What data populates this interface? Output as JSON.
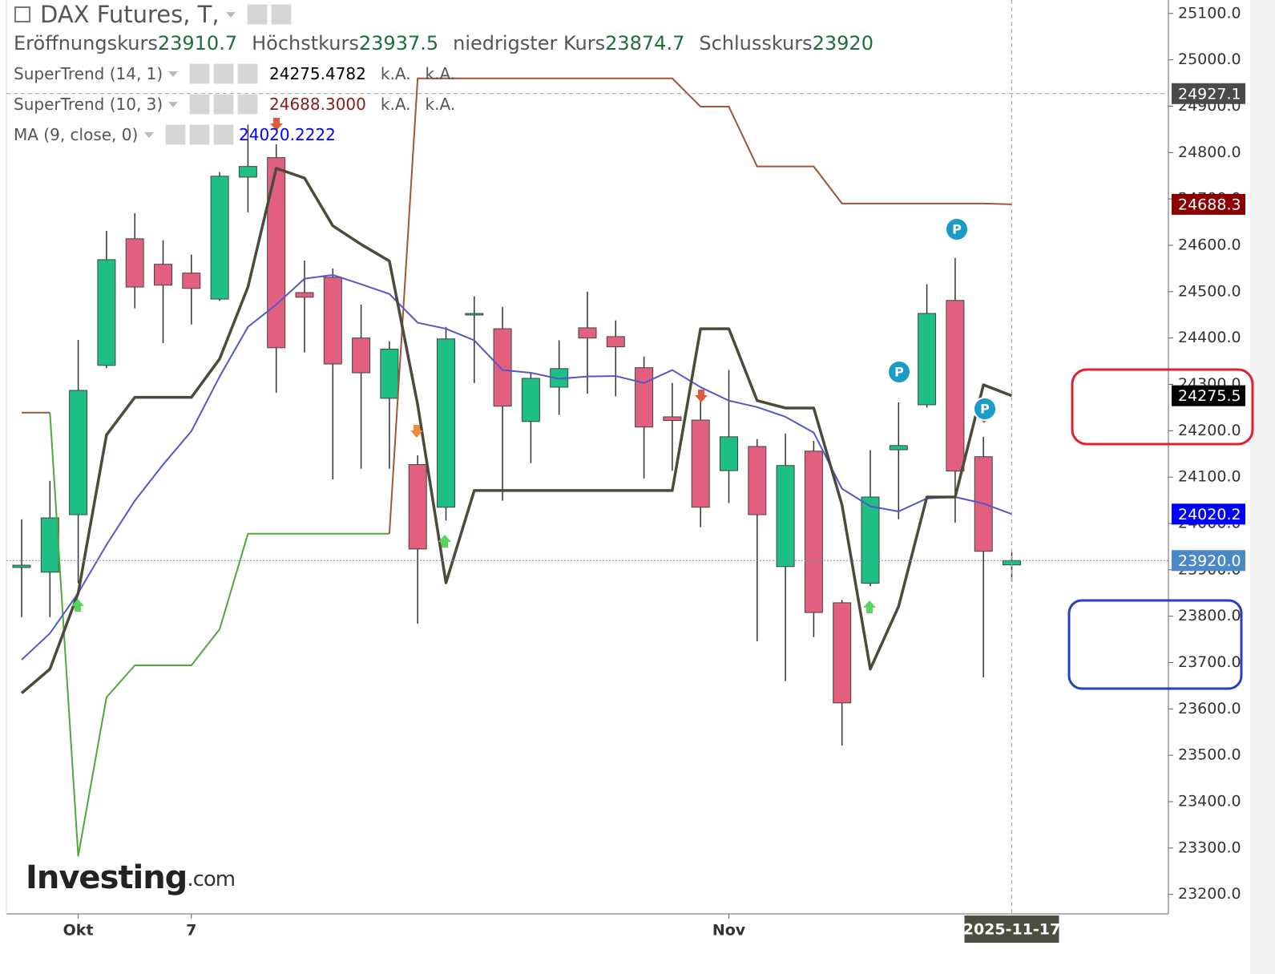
{
  "chart_data": {
    "type": "candlestick",
    "title": "DAX Futures, T,",
    "ohlc_header": [
      {
        "label": "Eröffnungskurs",
        "value": 23910.7
      },
      {
        "label": "Höchstkurs",
        "value": 23937.5
      },
      {
        "label": "niedrigster Kurs",
        "value": 23874.7
      },
      {
        "label": "Schlusskurs",
        "value": 23920.0
      }
    ],
    "categories": [
      null,
      null,
      "Okt",
      null,
      null,
      null,
      "7",
      null,
      null,
      null,
      null,
      null,
      null,
      null,
      null,
      null,
      null,
      null,
      null,
      null,
      null,
      null,
      null,
      null,
      null,
      "Nov",
      null,
      null,
      null,
      null,
      null,
      null,
      null,
      null,
      null,
      "2025-11-17"
    ],
    "open": [
      23905,
      23895,
      24019,
      24341,
      24614,
      24559,
      24540,
      24484,
      24747,
      24789,
      24498,
      24531,
      24400,
      24270,
      24127,
      24035,
      24450,
      24420,
      24220,
      24294,
      24422,
      24403,
      24336,
      24230,
      24223,
      24114,
      24166,
      23907,
      24156,
      23829,
      23871,
      24159,
      24256,
      24481,
      24144,
      23910.7
    ],
    "high": [
      24009,
      24092,
      24396,
      24631,
      24669,
      24611,
      24580,
      24758,
      24860,
      24818,
      24567,
      24550,
      24472,
      24393,
      24147,
      24424,
      24490,
      24467,
      24325,
      24395,
      24500,
      24438,
      24360,
      24303,
      24265,
      24331,
      24182,
      24194,
      24178,
      23835,
      24158,
      24261,
      24516,
      24573,
      24187,
      23937.5
    ],
    "low": [
      23798,
      23798,
      23871,
      24335,
      24464,
      24389,
      24429,
      24480,
      24671,
      24282,
      24369,
      24095,
      24118,
      24118,
      23784,
      24006,
      24303,
      24049,
      24130,
      24234,
      24280,
      24274,
      24097,
      24114,
      23992,
      24044,
      23746,
      23660,
      23755,
      23521,
      23865,
      24009,
      24250,
      24002,
      23668,
      23874.7
    ],
    "close": [
      23910,
      24012,
      24287,
      24569,
      24510,
      24514,
      24507,
      24749,
      24770,
      24379,
      24488,
      24344,
      24325,
      24376,
      23945,
      24398,
      24453,
      24253,
      24313,
      24334,
      24400,
      24381,
      24208,
      24222,
      24035,
      24187,
      24019,
      24125,
      23808,
      23613,
      24057,
      24168,
      24453,
      24113,
      23940,
      23920
    ],
    "up_color": "#1dbf85",
    "down_color": "#e2607d",
    "series": [
      {
        "name": "SuperTrend (14, 1)",
        "color": "#4b4b3c",
        "value_label": "24275.4782",
        "label_color": "#000000",
        "notes": [
          "k.A.",
          "k.A."
        ],
        "values": [
          23634,
          23686,
          23850,
          24191,
          24272,
          24272,
          24272,
          24355,
          24510,
          24766,
          24745,
          24642,
          24602,
          24566,
          24256,
          23872,
          24071,
          24071,
          24071,
          24071,
          24071,
          24071,
          24071,
          24071,
          24420,
          24420,
          24265,
          24249,
          24249,
          24040,
          23686,
          23821,
          24057,
          24057,
          24299,
          24275.4782
        ]
      },
      {
        "name": "SuperTrend (10, 3)",
        "value_label": "24688.3000",
        "label_color": "#8b1a1a",
        "notes": [
          "k.A.",
          "k.A."
        ],
        "up_color": "#4ea83a",
        "down_color": "#a0553a",
        "values_up": [
          null,
          24239,
          23283,
          23625,
          23694,
          23694,
          23694,
          23772,
          23978,
          23978,
          23978,
          23978,
          23978,
          23978,
          null,
          null,
          null,
          null,
          null,
          null,
          null,
          null,
          null,
          null,
          null,
          null,
          null,
          null,
          null,
          null,
          null,
          null,
          null,
          null,
          null,
          null
        ],
        "values_down": [
          24239,
          24239,
          null,
          null,
          null,
          null,
          null,
          null,
          null,
          null,
          null,
          null,
          null,
          23978,
          24960,
          24960,
          24960,
          24960,
          24960,
          24960,
          24960,
          24960,
          24960,
          24960,
          24899,
          24899,
          24770,
          24770,
          24770,
          24690,
          24690,
          24690,
          24690,
          24690,
          24690,
          24688.3
        ]
      },
      {
        "name": "MA (9, close, 0)",
        "color": "#5555cc",
        "value_label": "24020.2222",
        "label_color": "#0000ff",
        "values": [
          23706,
          23763,
          23850,
          23954,
          24049,
          24127,
          24199,
          24317,
          24424,
          24472,
          24528,
          24536,
          24516,
          24495,
          24433,
          24420,
          24395,
          24331,
          24325,
          24312,
          24317,
          24318,
          24303,
          24331,
          24294,
          24265,
          24251,
          24230,
          24196,
          24075,
          24037,
          24026,
          24054,
          24057,
          24043,
          24020.2222
        ]
      }
    ],
    "ylim": [
      23158,
      25129
    ],
    "yticks": [
      {
        "value": 23200,
        "label": "23200.0"
      },
      {
        "value": 23300,
        "label": "23300.0"
      },
      {
        "value": 23400,
        "label": "23400.0"
      },
      {
        "value": 23500,
        "label": "23500.0"
      },
      {
        "value": 23600,
        "label": "23600.0"
      },
      {
        "value": 23700,
        "label": "23700.0"
      },
      {
        "value": 23800,
        "label": "23800.0"
      },
      {
        "value": 23900,
        "label": "23900.0"
      },
      {
        "value": 24000,
        "label": "24000.0"
      },
      {
        "value": 24100,
        "label": "24100.0"
      },
      {
        "value": 24200,
        "label": "24200.0"
      },
      {
        "value": 24300,
        "label": "24300.0"
      },
      {
        "value": 24400,
        "label": "24400.0"
      },
      {
        "value": 24500,
        "label": "24500.0"
      },
      {
        "value": 24600,
        "label": "24600.0"
      },
      {
        "value": 24700,
        "label": "24700.0"
      },
      {
        "value": 24800,
        "label": "24800.0"
      },
      {
        "value": 24900,
        "label": "24900.0"
      },
      {
        "value": 25000,
        "label": "25000.0"
      },
      {
        "value": 25100,
        "label": "25100.0"
      }
    ],
    "crosshair": {
      "price": 24927.1,
      "color": "#4a4a4a"
    },
    "price_tags": [
      {
        "value": 24688.3,
        "color": "#8b0000"
      },
      {
        "value": 24275.5,
        "color": "#000000"
      },
      {
        "value": 24020.2,
        "color": "#0000ff"
      },
      {
        "value": 23920,
        "label": "23920.0",
        "color": "#4a88c7"
      }
    ],
    "pattern_label": "P",
    "watermark": {
      "brand": "Investing",
      "suffix": ".com"
    }
  }
}
